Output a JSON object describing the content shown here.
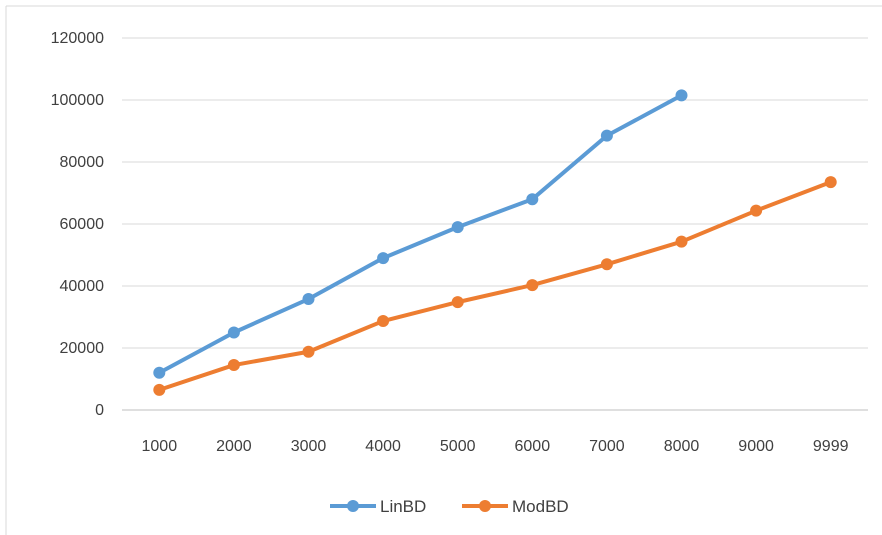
{
  "chart_data": {
    "type": "line",
    "title": "",
    "xlabel": "",
    "ylabel": "",
    "categories": [
      "1000",
      "2000",
      "3000",
      "4000",
      "5000",
      "6000",
      "7000",
      "8000",
      "9000",
      "9999"
    ],
    "ylim": [
      0,
      120000
    ],
    "yticks": [
      "0",
      "20000",
      "40000",
      "60000",
      "80000",
      "100000",
      "120000"
    ],
    "grid": true,
    "legend_position": "bottom",
    "series": [
      {
        "name": "LinBD",
        "color": "#5b9bd5",
        "values": [
          12000,
          25000,
          35800,
          49000,
          59000,
          68000,
          88500,
          101500,
          null,
          null
        ]
      },
      {
        "name": "ModBD",
        "color": "#ed7d31",
        "values": [
          6500,
          14500,
          18800,
          28700,
          34800,
          40300,
          47000,
          54300,
          64300,
          73500
        ]
      }
    ]
  }
}
